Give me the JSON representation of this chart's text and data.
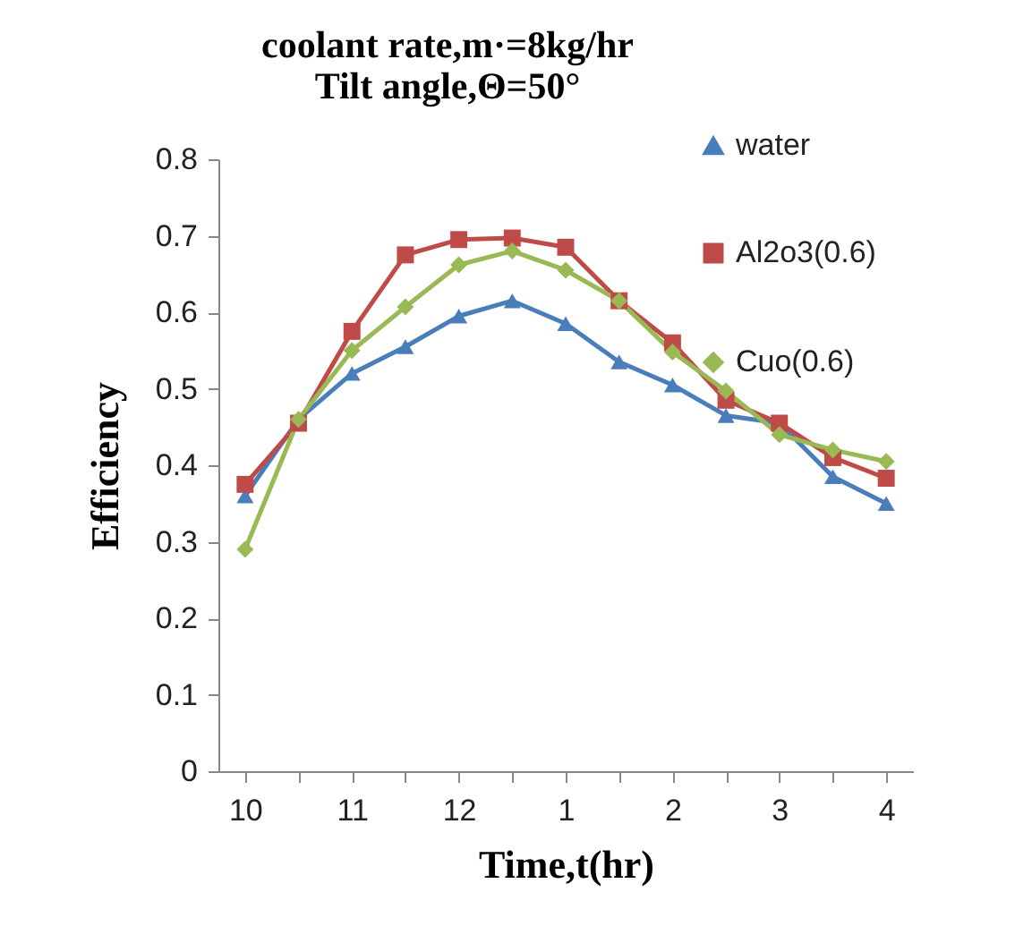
{
  "chart_data": {
    "type": "line",
    "title": "coolant rate,m·=8kg/hr",
    "subtitle": "Tilt angle,Θ=50°",
    "xlabel": "Time,t(hr)",
    "ylabel": "Efficiency",
    "categories": [
      "10",
      null,
      "11",
      null,
      "12",
      null,
      "1",
      null,
      "2",
      null,
      "3",
      null,
      "4"
    ],
    "series": [
      {
        "name": "water",
        "color": "#4a7ebb",
        "marker": "triangle",
        "values": [
          0.36,
          0.46,
          0.52,
          0.555,
          0.595,
          0.615,
          0.585,
          0.535,
          0.505,
          0.465,
          0.455,
          0.385,
          0.35
        ]
      },
      {
        "name": "Al2o3(0.6)",
        "color": "#be4b48",
        "marker": "square",
        "values": [
          0.375,
          0.455,
          0.575,
          0.675,
          0.695,
          0.697,
          0.685,
          0.615,
          0.56,
          0.485,
          0.455,
          0.41,
          0.383
        ]
      },
      {
        "name": "Cuo(0.6)",
        "color": "#98b954",
        "marker": "diamond",
        "values": [
          0.29,
          0.46,
          0.55,
          0.607,
          0.662,
          0.68,
          0.655,
          0.615,
          0.548,
          0.497,
          0.44,
          0.42,
          0.405
        ]
      }
    ],
    "ylim": [
      0,
      0.8
    ],
    "yticks": [
      0,
      0.1,
      0.2,
      0.3,
      0.4,
      0.5,
      0.6,
      0.7,
      0.8
    ],
    "grid": false,
    "legend": "top right"
  }
}
